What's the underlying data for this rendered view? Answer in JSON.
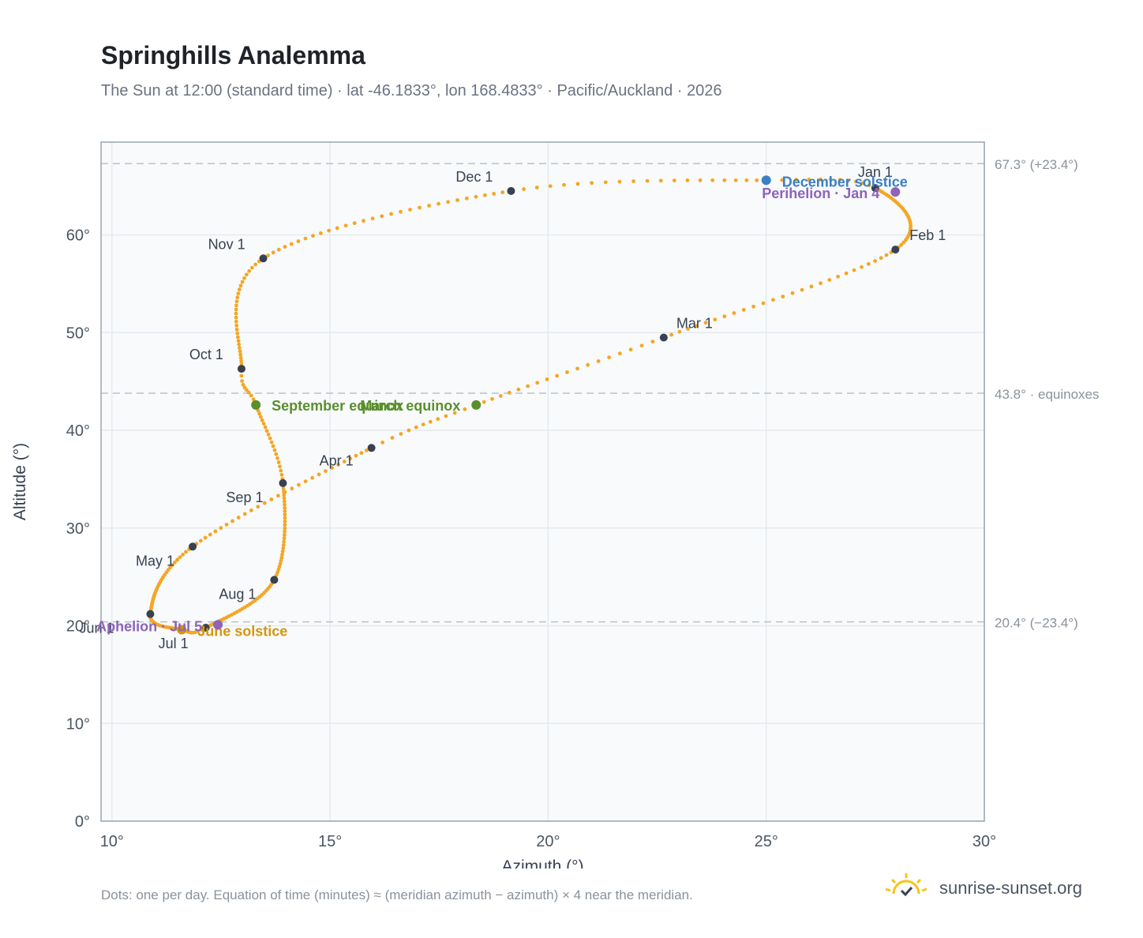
{
  "header": {
    "title": "Springhills Analemma",
    "subtitle": "The Sun at 12:00 (standard time) · lat -46.1833°, lon 168.4833° · Pacific/Auckland · 2026"
  },
  "footer": {
    "note": "Dots: one per day. Equation of time (minutes) ≈ (meridian azimuth − azimuth) × 4 near the meridian.",
    "brand": "sunrise-sunset.org"
  },
  "colors": {
    "path": "#f5a623",
    "month_marker": "#374151",
    "equinox": "#5a8f2c",
    "december_solstice": "#3b7fc4",
    "june_solstice": "#d4960c",
    "apsis": "#8e63b8",
    "reference_line": "#b8c2cc",
    "grid": "#e5eaf0",
    "plot_bg": "#f8fafc"
  },
  "chart_data": {
    "type": "scatter",
    "xlabel": "Azimuth (°)",
    "ylabel": "Altitude (°)",
    "xlim": [
      9.75,
      30
    ],
    "ylim": [
      0,
      69.5
    ],
    "xticks": [
      10,
      15,
      20,
      25,
      30
    ],
    "xtick_labels": [
      "10°",
      "15°",
      "20°",
      "25°",
      "30°"
    ],
    "yticks": [
      0,
      10,
      20,
      30,
      40,
      50,
      60
    ],
    "ytick_labels": [
      "0°",
      "10°",
      "20°",
      "30°",
      "40°",
      "50°",
      "60°"
    ],
    "grid": true,
    "reference_lines": [
      {
        "y": 67.3,
        "label": "67.3° (+23.4°)"
      },
      {
        "y": 43.8,
        "label": "43.8° · equinoxes"
      },
      {
        "y": 20.4,
        "label": "20.4° (−23.4°)"
      }
    ],
    "series": [
      {
        "day_step": 1,
        "points": [
          {
            "day": 0,
            "azimuth": 27.5,
            "altitude": 64.8
          },
          {
            "day": 31,
            "azimuth": 27.96,
            "altitude": 58.5
          },
          {
            "day": 59,
            "azimuth": 22.65,
            "altitude": 49.5
          },
          {
            "day": 78,
            "azimuth": 18.35,
            "altitude": 42.6
          },
          {
            "day": 90,
            "azimuth": 15.95,
            "altitude": 38.2
          },
          {
            "day": 120,
            "azimuth": 11.85,
            "altitude": 28.1
          },
          {
            "day": 151,
            "azimuth": 10.88,
            "altitude": 21.2
          },
          {
            "day": 171,
            "azimuth": 11.6,
            "altitude": 19.6
          },
          {
            "day": 181,
            "azimuth": 12.15,
            "altitude": 19.8
          },
          {
            "day": 212,
            "azimuth": 13.72,
            "altitude": 24.7
          },
          {
            "day": 243,
            "azimuth": 13.92,
            "altitude": 34.6
          },
          {
            "day": 264,
            "azimuth": 13.3,
            "altitude": 42.6
          },
          {
            "day": 273,
            "azimuth": 12.97,
            "altitude": 46.3
          },
          {
            "day": 304,
            "azimuth": 13.47,
            "altitude": 57.6
          },
          {
            "day": 334,
            "azimuth": 19.15,
            "altitude": 64.5
          },
          {
            "day": 354,
            "azimuth": 25.0,
            "altitude": 65.6
          },
          {
            "day": 365,
            "azimuth": 27.5,
            "altitude": 64.8
          }
        ]
      }
    ],
    "month_markers": [
      {
        "label": "Jan 1",
        "azimuth": 27.5,
        "altitude": 64.8
      },
      {
        "label": "Feb 1",
        "azimuth": 27.96,
        "altitude": 58.5
      },
      {
        "label": "Mar 1",
        "azimuth": 22.65,
        "altitude": 49.5
      },
      {
        "label": "Apr 1",
        "azimuth": 15.95,
        "altitude": 38.2
      },
      {
        "label": "May 1",
        "azimuth": 11.85,
        "altitude": 28.1
      },
      {
        "label": "Jun 1",
        "azimuth": 10.88,
        "altitude": 21.2
      },
      {
        "label": "Jul 1",
        "azimuth": 12.15,
        "altitude": 19.8
      },
      {
        "label": "Aug 1",
        "azimuth": 13.72,
        "altitude": 24.7
      },
      {
        "label": "Sep 1",
        "azimuth": 13.92,
        "altitude": 34.6
      },
      {
        "label": "Oct 1",
        "azimuth": 12.97,
        "altitude": 46.3
      },
      {
        "label": "Nov 1",
        "azimuth": 13.47,
        "altitude": 57.6
      },
      {
        "label": "Dec 1",
        "azimuth": 19.15,
        "altitude": 64.5
      }
    ],
    "events": [
      {
        "label": "March equinox",
        "azimuth": 18.35,
        "altitude": 42.6,
        "color": "#5a8f2c"
      },
      {
        "label": "September equinox",
        "azimuth": 13.3,
        "altitude": 42.6,
        "color": "#5a8f2c"
      },
      {
        "label": "December solstice",
        "azimuth": 25.0,
        "altitude": 65.6,
        "color": "#3b7fc4"
      },
      {
        "label": "June solstice",
        "azimuth": 11.6,
        "altitude": 19.6,
        "color": "#d4960c"
      },
      {
        "label": "Perihelion · Jan 4",
        "azimuth": 27.96,
        "altitude": 64.4,
        "color": "#8e63b8"
      },
      {
        "label": "Aphelion · Jul 5",
        "azimuth": 12.43,
        "altitude": 20.1,
        "color": "#8e63b8"
      }
    ]
  }
}
